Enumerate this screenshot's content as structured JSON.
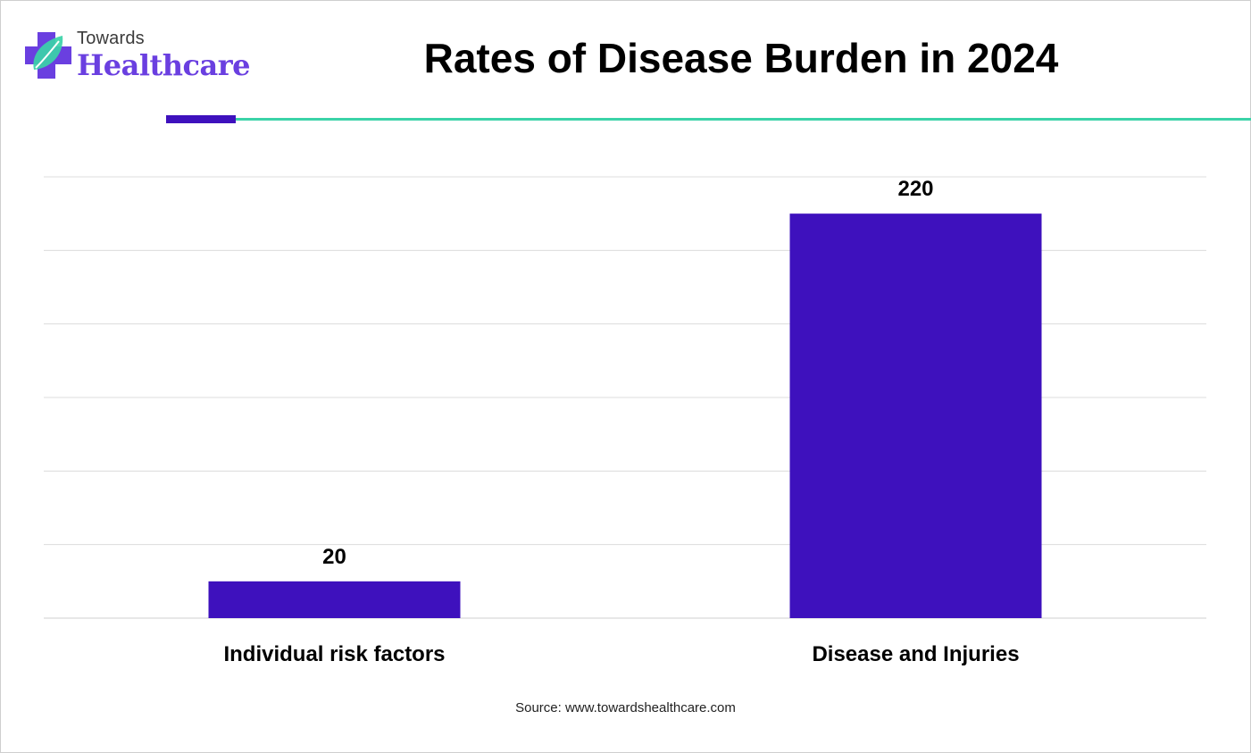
{
  "brand": {
    "line1": "Towards",
    "line2": "Healthcare",
    "colors": {
      "primary": "#6a3fe0",
      "accent": "#3bd3a8"
    }
  },
  "source": "Source: www.towardshealthcare.com",
  "chart_data": {
    "type": "bar",
    "title": "Rates of Disease Burden in 2024",
    "categories": [
      "Individual risk factors",
      "Disease and Injuries"
    ],
    "values": [
      20,
      220
    ],
    "data_labels": [
      "20",
      "220"
    ],
    "xlabel": "",
    "ylabel": "",
    "ylim": [
      0,
      240
    ],
    "grid": true,
    "bar_color": "#3e11bd"
  }
}
